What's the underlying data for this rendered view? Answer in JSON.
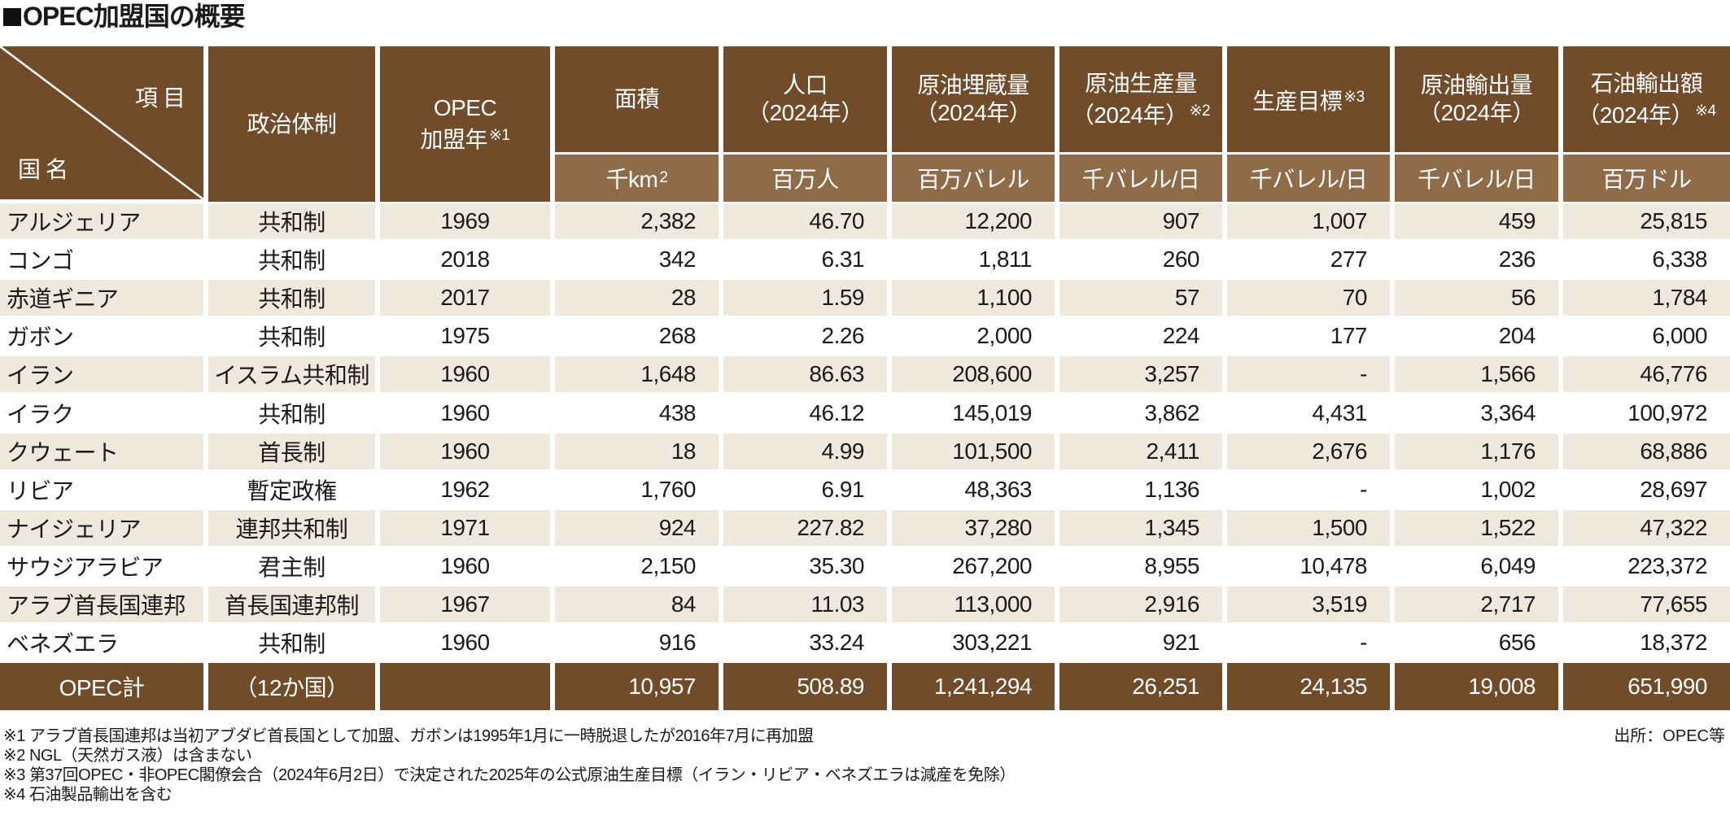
{
  "title": "OPEC加盟国の概要",
  "header": {
    "corner_item": "項目",
    "corner_country": "国名",
    "columns": [
      {
        "line1": "政治体制",
        "line2": "",
        "note": "",
        "unit": ""
      },
      {
        "line1": "OPEC",
        "line2": "加盟年",
        "note": "※1",
        "unit": ""
      },
      {
        "line1": "面積",
        "line2": "",
        "note": "",
        "unit": "千km",
        "unit_sup": "2"
      },
      {
        "line1": "人口",
        "line2": "（2024年）",
        "note": "",
        "unit": "百万人"
      },
      {
        "line1": "原油埋蔵量",
        "line2": "（2024年）",
        "note": "",
        "unit": "百万バレル"
      },
      {
        "line1": "原油生産量",
        "line2": "（2024年）",
        "note": "※2",
        "unit": "千バレル/日"
      },
      {
        "line1": "生産目標",
        "line2": "",
        "note": "※3",
        "unit": "千バレル/日"
      },
      {
        "line1": "原油輸出量",
        "line2": "（2024年）",
        "note": "",
        "unit": "千バレル/日"
      },
      {
        "line1": "石油輸出額",
        "line2": "（2024年）",
        "note": "※4",
        "unit": "百万ドル"
      }
    ]
  },
  "rows": [
    {
      "country": "アルジェリア",
      "regime": "共和制",
      "joined": "1969",
      "area": "2,382",
      "population": "46.70",
      "reserves": "12,200",
      "production": "907",
      "target": "1,007",
      "exports": "459",
      "export_value": "25,815"
    },
    {
      "country": "コンゴ",
      "regime": "共和制",
      "joined": "2018",
      "area": "342",
      "population": "6.31",
      "reserves": "1,811",
      "production": "260",
      "target": "277",
      "exports": "236",
      "export_value": "6,338"
    },
    {
      "country": "赤道ギニア",
      "regime": "共和制",
      "joined": "2017",
      "area": "28",
      "population": "1.59",
      "reserves": "1,100",
      "production": "57",
      "target": "70",
      "exports": "56",
      "export_value": "1,784"
    },
    {
      "country": "ガボン",
      "regime": "共和制",
      "joined": "1975",
      "area": "268",
      "population": "2.26",
      "reserves": "2,000",
      "production": "224",
      "target": "177",
      "exports": "204",
      "export_value": "6,000"
    },
    {
      "country": "イラン",
      "regime": "イスラム共和制",
      "joined": "1960",
      "area": "1,648",
      "population": "86.63",
      "reserves": "208,600",
      "production": "3,257",
      "target": "-",
      "exports": "1,566",
      "export_value": "46,776"
    },
    {
      "country": "イラク",
      "regime": "共和制",
      "joined": "1960",
      "area": "438",
      "population": "46.12",
      "reserves": "145,019",
      "production": "3,862",
      "target": "4,431",
      "exports": "3,364",
      "export_value": "100,972"
    },
    {
      "country": "クウェート",
      "regime": "首長制",
      "joined": "1960",
      "area": "18",
      "population": "4.99",
      "reserves": "101,500",
      "production": "2,411",
      "target": "2,676",
      "exports": "1,176",
      "export_value": "68,886"
    },
    {
      "country": "リビア",
      "regime": "暫定政権",
      "joined": "1962",
      "area": "1,760",
      "population": "6.91",
      "reserves": "48,363",
      "production": "1,136",
      "target": "-",
      "exports": "1,002",
      "export_value": "28,697"
    },
    {
      "country": "ナイジェリア",
      "regime": "連邦共和制",
      "joined": "1971",
      "area": "924",
      "population": "227.82",
      "reserves": "37,280",
      "production": "1,345",
      "target": "1,500",
      "exports": "1,522",
      "export_value": "47,322"
    },
    {
      "country": "サウジアラビア",
      "regime": "君主制",
      "joined": "1960",
      "area": "2,150",
      "population": "35.30",
      "reserves": "267,200",
      "production": "8,955",
      "target": "10,478",
      "exports": "6,049",
      "export_value": "223,372"
    },
    {
      "country": "アラブ首長国連邦",
      "regime": "首長国連邦制",
      "joined": "1967",
      "area": "84",
      "population": "11.03",
      "reserves": "113,000",
      "production": "2,916",
      "target": "3,519",
      "exports": "2,717",
      "export_value": "77,655"
    },
    {
      "country": "ベネズエラ",
      "regime": "共和制",
      "joined": "1960",
      "area": "916",
      "population": "33.24",
      "reserves": "303,221",
      "production": "921",
      "target": "-",
      "exports": "656",
      "export_value": "18,372"
    }
  ],
  "total": {
    "country": "OPEC計",
    "regime": "（12か国）",
    "joined": "",
    "area": "10,957",
    "population": "508.89",
    "reserves": "1,241,294",
    "production": "26,251",
    "target": "24,135",
    "exports": "19,008",
    "export_value": "651,990"
  },
  "notes": [
    "※1 アラブ首長国連邦は当初アブダビ首長国として加盟、ガボンは1995年1月に一時脱退したが2016年7月に再加盟",
    "※2 NGL（天然ガス液）は含まない",
    "※3 第37回OPEC・非OPEC閣僚会合（2024年6月2日）で決定された2025年の公式原油生産目標（イラン・リビア・ベネズエラは減産を免除）",
    "※4  石油製品輸出を含む"
  ],
  "source": "出所：OPEC等",
  "colors": {
    "header": "#704c2a",
    "unit_row": "#8e6b49",
    "band": "#efe8dc"
  }
}
